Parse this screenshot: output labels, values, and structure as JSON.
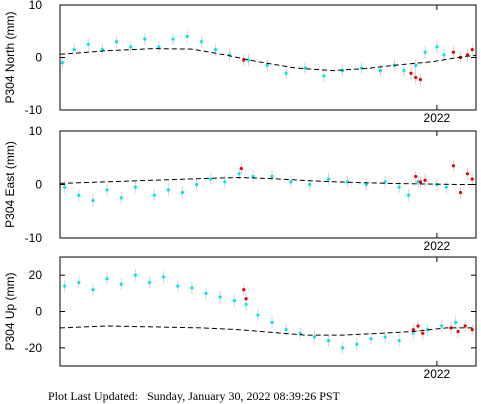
{
  "chart_data": [
    {
      "type": "scatter",
      "ylabel": "P304 North (mm)",
      "ylim": [
        -10,
        10
      ],
      "yticks": [
        10,
        0,
        -10
      ],
      "xlim": [
        2014.0,
        2022.83
      ],
      "xticks": [
        {
          "value": 2022.0,
          "label": "2022"
        }
      ],
      "grid": false,
      "series": [
        {
          "color": "#00e5ee",
          "x": [
            2014.05,
            2014.3,
            2014.6,
            2014.9,
            2015.2,
            2015.5,
            2015.8,
            2016.1,
            2016.4,
            2016.7,
            2017.0,
            2017.3,
            2017.6,
            2018.0,
            2018.4,
            2018.8,
            2019.2,
            2019.6,
            2020.0,
            2020.4,
            2020.8,
            2021.1,
            2021.3,
            2021.55,
            2021.75,
            2022.0,
            2022.15
          ],
          "y": [
            -1.0,
            1.5,
            2.5,
            1.5,
            3.0,
            2.0,
            3.5,
            2.0,
            3.5,
            4.0,
            3.0,
            1.5,
            0.5,
            -0.5,
            -1.5,
            -3.0,
            -2.0,
            -3.5,
            -2.5,
            -2.0,
            -2.5,
            -1.5,
            -2.5,
            -1.5,
            1.0,
            2.0,
            0.5
          ]
        },
        {
          "color": "#ee0000",
          "x": [
            2017.9,
            2021.45,
            2021.55,
            2021.65,
            2022.35,
            2022.5,
            2022.65,
            2022.75
          ],
          "y": [
            -0.5,
            -3.0,
            -3.8,
            -4.2,
            1.0,
            0.0,
            0.5,
            1.5
          ]
        },
        {
          "style": "dashed",
          "color": "#000000",
          "x": [
            2014.0,
            2015.0,
            2016.0,
            2016.8,
            2017.5,
            2018.2,
            2019.0,
            2019.8,
            2020.5,
            2021.2,
            2021.9,
            2022.6,
            2022.83
          ],
          "y": [
            0.6,
            1.3,
            1.7,
            1.6,
            0.5,
            -0.8,
            -2.0,
            -2.5,
            -2.1,
            -1.4,
            -0.8,
            0.2,
            0.4
          ]
        }
      ]
    },
    {
      "type": "scatter",
      "ylabel": "P304 East (mm)",
      "ylim": [
        -10,
        10
      ],
      "yticks": [
        10,
        0,
        -10
      ],
      "xlim": [
        2014.0,
        2022.83
      ],
      "xticks": [
        {
          "value": 2022.0,
          "label": "2022"
        }
      ],
      "grid": false,
      "series": [
        {
          "color": "#00e5ee",
          "x": [
            2014.1,
            2014.4,
            2014.7,
            2015.0,
            2015.3,
            2015.6,
            2016.0,
            2016.3,
            2016.6,
            2016.9,
            2017.2,
            2017.5,
            2017.8,
            2018.1,
            2018.5,
            2018.9,
            2019.3,
            2019.7,
            2020.1,
            2020.5,
            2020.9,
            2021.2,
            2021.4,
            2021.6,
            2022.0,
            2022.2
          ],
          "y": [
            -0.5,
            -2.0,
            -3.0,
            -1.0,
            -2.5,
            -0.5,
            -2.0,
            -1.0,
            -1.5,
            0.0,
            1.0,
            0.5,
            2.0,
            1.5,
            1.5,
            0.5,
            0.0,
            1.0,
            0.5,
            0.0,
            0.5,
            -0.5,
            -2.0,
            0.5,
            0.0,
            -0.5
          ]
        },
        {
          "color": "#ee0000",
          "x": [
            2017.85,
            2021.55,
            2021.65,
            2021.75,
            2022.35,
            2022.5,
            2022.65,
            2022.75
          ],
          "y": [
            3.0,
            1.5,
            0.5,
            0.8,
            3.5,
            -1.5,
            2.0,
            1.0
          ]
        },
        {
          "style": "dashed",
          "color": "#000000",
          "x": [
            2014.0,
            2015.0,
            2016.0,
            2017.0,
            2017.8,
            2018.5,
            2019.3,
            2020.2,
            2021.0,
            2021.8,
            2022.5,
            2022.83
          ],
          "y": [
            0.2,
            0.5,
            0.8,
            1.1,
            1.3,
            1.1,
            0.7,
            0.4,
            0.2,
            0.1,
            0.0,
            0.0
          ]
        }
      ]
    },
    {
      "type": "scatter",
      "ylabel": "P304 Up (mm)",
      "ylim": [
        -30,
        30
      ],
      "yticks": [
        20,
        0,
        -20
      ],
      "xlim": [
        2014.0,
        2022.83
      ],
      "xticks": [
        {
          "value": 2022.0,
          "label": "2022"
        }
      ],
      "grid": false,
      "series": [
        {
          "color": "#00e5ee",
          "x": [
            2014.1,
            2014.4,
            2014.7,
            2015.0,
            2015.3,
            2015.6,
            2015.9,
            2016.2,
            2016.5,
            2016.8,
            2017.1,
            2017.4,
            2017.7,
            2017.95,
            2018.2,
            2018.5,
            2018.8,
            2019.1,
            2019.4,
            2019.7,
            2020.0,
            2020.3,
            2020.6,
            2020.9,
            2021.2,
            2021.5,
            2021.8,
            2022.1,
            2022.4
          ],
          "y": [
            14,
            16,
            12,
            18,
            15,
            20,
            16,
            19,
            14,
            13,
            10,
            8,
            6,
            4,
            -2,
            -6,
            -10,
            -12,
            -14,
            -16,
            -20,
            -18,
            -15,
            -14,
            -16,
            -12,
            -10,
            -8,
            -6
          ]
        },
        {
          "color": "#ee0000",
          "x": [
            2017.9,
            2017.95,
            2021.5,
            2021.6,
            2021.7,
            2022.3,
            2022.45,
            2022.6,
            2022.75
          ],
          "y": [
            12,
            7,
            -10,
            -8,
            -12,
            -9,
            -11,
            -8,
            -10
          ]
        },
        {
          "style": "dashed",
          "color": "#000000",
          "x": [
            2014.0,
            2015.0,
            2016.0,
            2017.0,
            2017.8,
            2018.5,
            2019.2,
            2020.0,
            2020.8,
            2021.5,
            2022.2,
            2022.83
          ],
          "y": [
            -9,
            -8,
            -8.5,
            -9,
            -10,
            -11.5,
            -13,
            -13,
            -12,
            -11,
            -9,
            -9
          ]
        }
      ]
    }
  ],
  "footer": {
    "text": "Plot Last Updated:   Sunday, January 30, 2022 08:39:26 PST"
  }
}
